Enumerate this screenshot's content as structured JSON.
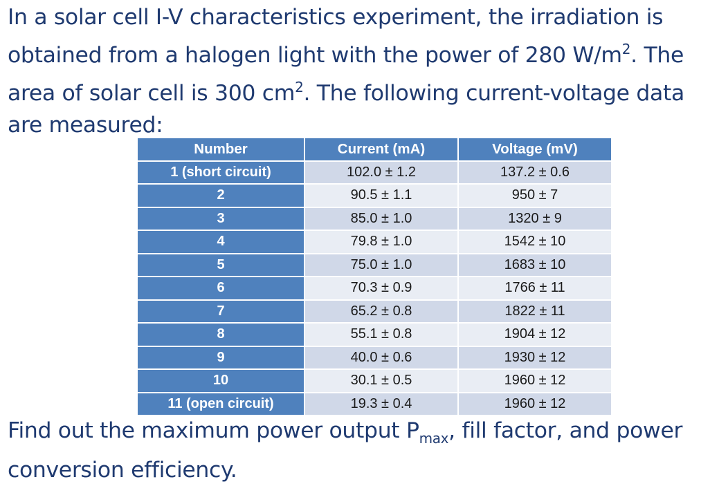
{
  "intro": {
    "line1": "In a solar cell I-V characteristics experiment, the irradiation is",
    "line2a": "obtained from a halogen light with the power of 280 W/m",
    "line2_sup": "2",
    "line2b": ". The",
    "line3a": "area of solar cell is 300 cm",
    "line3_sup": "2",
    "line3b": ". The following current-voltage data",
    "line4": "are measured:"
  },
  "table": {
    "headers": [
      "Number",
      "Current (mA)",
      "Voltage (mV)"
    ],
    "rows": [
      {
        "number": "1 (short circuit)",
        "current": "102.0 ± 1.2",
        "voltage": "137.2 ± 0.6"
      },
      {
        "number": "2",
        "current": "90.5 ± 1.1",
        "voltage": "950 ± 7"
      },
      {
        "number": "3",
        "current": "85.0 ± 1.0",
        "voltage": "1320 ± 9"
      },
      {
        "number": "4",
        "current": "79.8 ± 1.0",
        "voltage": "1542 ± 10"
      },
      {
        "number": "5",
        "current": "75.0 ± 1.0",
        "voltage": "1683 ± 10"
      },
      {
        "number": "6",
        "current": "70.3 ± 0.9",
        "voltage": "1766 ± 11"
      },
      {
        "number": "7",
        "current": "65.2 ± 0.8",
        "voltage": "1822 ± 11"
      },
      {
        "number": "8",
        "current": "55.1 ± 0.8",
        "voltage": "1904 ± 12"
      },
      {
        "number": "9",
        "current": "40.0 ± 0.6",
        "voltage": "1930 ± 12"
      },
      {
        "number": "10",
        "current": "30.1 ± 0.5",
        "voltage": "1960 ± 12"
      },
      {
        "number": "11 (open circuit)",
        "current": "19.3 ± 0.4",
        "voltage": "1960 ± 12"
      }
    ]
  },
  "question": {
    "line1a": "Find out the maximum power output P",
    "line1_sub": "max",
    "line1b": ", fill factor, and power",
    "line2": "conversion efficiency."
  }
}
